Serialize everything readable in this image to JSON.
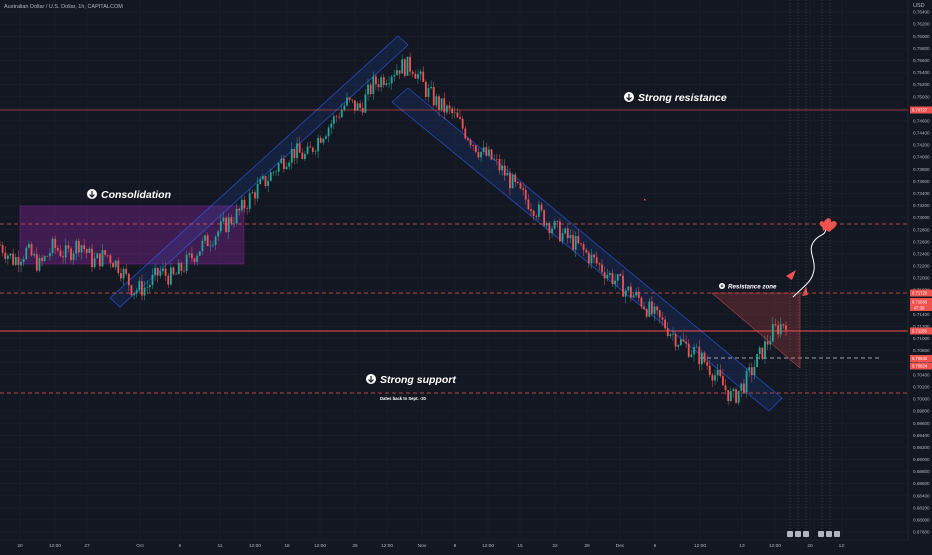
{
  "header": {
    "title": "Australian Dollar / U.S. Dollar, 1h, CAPITALCOM",
    "currency": "USD"
  },
  "colors": {
    "background": "#131722",
    "grid": "#1e222d",
    "candle_up": "#26a69a",
    "candle_down": "#ef5350",
    "channel": "#2962ff",
    "consolidation": "#9c27b0",
    "resistance_line": "#ef5350",
    "support_line": "#ef5350",
    "arrow": "#ef5350"
  },
  "chart_data": {
    "type": "candlestick",
    "symbol": "AUDUSD",
    "timeframe": "1h",
    "ylim": [
      0.679,
      0.765
    ],
    "y_ticks": [
      "0.76400",
      "0.76200",
      "0.76000",
      "0.75800",
      "0.75600",
      "0.75400",
      "0.75200",
      "0.75000",
      "0.74800",
      "0.74600",
      "0.74400",
      "0.74200",
      "0.74000",
      "0.73800",
      "0.73600",
      "0.73400",
      "0.73200",
      "0.73000",
      "0.72800",
      "0.72600",
      "0.72400",
      "0.72200",
      "0.72000",
      "0.71800",
      "0.71600",
      "0.71400",
      "0.71200",
      "0.71000",
      "0.70800",
      "0.70600",
      "0.70400",
      "0.70200",
      "0.70000",
      "0.69800",
      "0.69600",
      "0.69400",
      "0.69200",
      "0.69000",
      "0.68800",
      "0.68600",
      "0.68400",
      "0.68200",
      "0.68000",
      "0.67800"
    ],
    "x_ticks": [
      "20",
      "12:00",
      "27",
      "Oct",
      "6",
      "11",
      "12:00",
      "18",
      "12:00",
      "25",
      "12:00",
      "Nov",
      "8",
      "12:00",
      "15",
      "22",
      "29",
      "Dec",
      "6",
      "12:00",
      "13",
      "12:00",
      "20",
      "12:"
    ],
    "price_series": [
      0.7265,
      0.724,
      0.7255,
      0.723,
      0.7262,
      0.7248,
      0.727,
      0.7236,
      0.725,
      0.7228,
      0.719,
      0.7195,
      0.722,
      0.721,
      0.7235,
      0.726,
      0.728,
      0.73,
      0.732,
      0.735,
      0.7372,
      0.74,
      0.742,
      0.741,
      0.7445,
      0.747,
      0.75,
      0.749,
      0.753,
      0.7545,
      0.756,
      0.756,
      0.752,
      0.7495,
      0.748,
      0.745,
      0.742,
      0.7405,
      0.738,
      0.735,
      0.733,
      0.7305,
      0.7285,
      0.727,
      0.725,
      0.723,
      0.721,
      0.719,
      0.7175,
      0.715,
      0.713,
      0.7105,
      0.709,
      0.707,
      0.704,
      0.701,
      0.704,
      0.708,
      0.712,
      0.714
    ],
    "levels": [
      {
        "label": "Strong resistance",
        "price": 0.74727,
        "tag": "0.74727"
      },
      {
        "label": "",
        "price": 0.7297,
        "tag": ""
      },
      {
        "label": "Resistance zone",
        "price": 0.7172,
        "tag": "0.71720"
      },
      {
        "label": "",
        "price": 0.71186,
        "tag": "0.71186"
      },
      {
        "label": "",
        "price": 0.7064,
        "tag": "0.70640"
      },
      {
        "label": "Strong support",
        "price": 0.7003,
        "tag": ""
      }
    ],
    "current_price": {
      "tag": "0.71566",
      "sub": "47:38"
    },
    "extra_tag": "0.70624",
    "annotations": [
      {
        "text": "Consolidation"
      },
      {
        "text": "Strong resistance"
      },
      {
        "text": "Strong support"
      },
      {
        "text": "Resistance zone"
      },
      {
        "text": "Dates back to Sept. -20"
      }
    ]
  }
}
